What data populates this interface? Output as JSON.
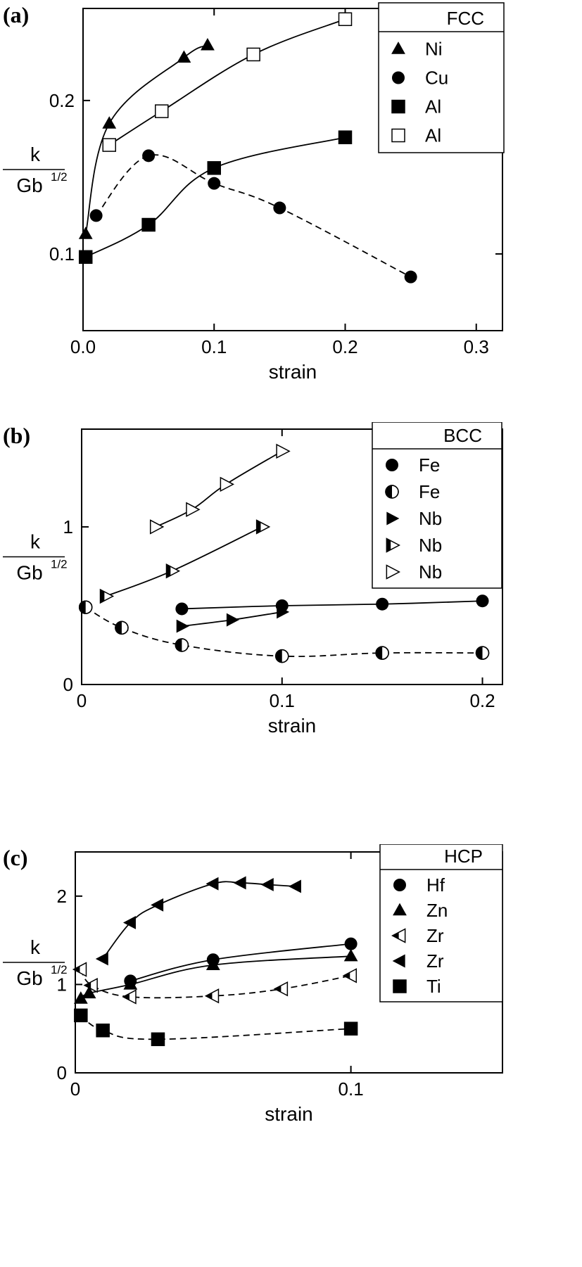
{
  "chart_data": [
    {
      "type": "scatter",
      "panel_label": "(a)",
      "xlabel": "strain",
      "ylabel_top": "k",
      "ylabel_bottom": "Gb",
      "ylabel_sup": "1/2",
      "xlim": [
        0,
        0.32
      ],
      "ylim": [
        0.05,
        0.26
      ],
      "xticks": [
        0.0,
        0.1,
        0.2,
        0.3
      ],
      "xtick_labels": [
        "0.0",
        "0.1",
        "0.2",
        "0.3"
      ],
      "yticks": [
        0.1,
        0.2
      ],
      "ytick_labels": [
        "0.1",
        "0.2"
      ],
      "legend_title": "FCC",
      "legend_position": "top-right",
      "series": [
        {
          "name": "Ni",
          "marker": "triangle-up-filled",
          "line": "solid",
          "x": [
            0.002,
            0.02,
            0.077,
            0.095
          ],
          "y": [
            0.113,
            0.185,
            0.228,
            0.236
          ]
        },
        {
          "name": "Cu",
          "marker": "circle-filled",
          "line": "dashed",
          "x": [
            0.01,
            0.05,
            0.1,
            0.15,
            0.25
          ],
          "y": [
            0.125,
            0.164,
            0.146,
            0.13,
            0.085
          ]
        },
        {
          "name": "Al",
          "marker": "square-filled",
          "line": "solid",
          "x": [
            0.002,
            0.05,
            0.1,
            0.2
          ],
          "y": [
            0.098,
            0.119,
            0.156,
            0.176
          ]
        },
        {
          "name": "Al",
          "marker": "square-open",
          "line": "solid",
          "x": [
            0.02,
            0.06,
            0.13,
            0.2
          ],
          "y": [
            0.171,
            0.193,
            0.23,
            0.253
          ]
        }
      ]
    },
    {
      "type": "scatter",
      "panel_label": "(b)",
      "xlabel": "strain",
      "ylabel_top": "k",
      "ylabel_bottom": "Gb",
      "ylabel_sup": "1/2",
      "xlim": [
        0,
        0.21
      ],
      "ylim": [
        0,
        1.62
      ],
      "xticks": [
        0,
        0.1,
        0.2
      ],
      "xtick_labels": [
        "0",
        "0.1",
        "0.2"
      ],
      "yticks": [
        0,
        1
      ],
      "ytick_labels": [
        "0",
        "1"
      ],
      "legend_title": "BCC",
      "legend_position": "top-right",
      "series": [
        {
          "name": "Fe",
          "marker": "circle-filled",
          "line": "solid",
          "x": [
            0.05,
            0.1,
            0.15,
            0.2
          ],
          "y": [
            0.48,
            0.5,
            0.51,
            0.53
          ]
        },
        {
          "name": "Fe",
          "marker": "circle-half",
          "line": "dashed",
          "x": [
            0.002,
            0.02,
            0.05,
            0.1,
            0.15,
            0.2
          ],
          "y": [
            0.49,
            0.36,
            0.25,
            0.18,
            0.2,
            0.2
          ]
        },
        {
          "name": "Nb",
          "marker": "triangle-right-filled",
          "line": "solid",
          "x": [
            0.05,
            0.075,
            0.1
          ],
          "y": [
            0.37,
            0.41,
            0.46
          ]
        },
        {
          "name": "Nb",
          "marker": "triangle-right-half",
          "line": "solid",
          "x": [
            0.012,
            0.045,
            0.09
          ],
          "y": [
            0.56,
            0.72,
            1.0
          ]
        },
        {
          "name": "Nb",
          "marker": "triangle-right-open",
          "line": "solid",
          "x": [
            0.037,
            0.055,
            0.072,
            0.1
          ],
          "y": [
            1.0,
            1.11,
            1.27,
            1.48
          ]
        }
      ]
    },
    {
      "type": "scatter",
      "panel_label": "(c)",
      "xlabel": "strain",
      "ylabel_top": "k",
      "ylabel_bottom": "Gb",
      "ylabel_sup": "1/2",
      "xlim": [
        0,
        0.155
      ],
      "ylim": [
        0,
        2.5
      ],
      "xticks": [
        0,
        0.1
      ],
      "xtick_labels": [
        "0",
        "0.1"
      ],
      "yticks": [
        0,
        1,
        2
      ],
      "ytick_labels": [
        "0",
        "1",
        "2"
      ],
      "legend_title": "HCP",
      "legend_position": "top-right",
      "series": [
        {
          "name": "Hf",
          "marker": "circle-filled",
          "line": "solid",
          "x": [
            0.02,
            0.05,
            0.1
          ],
          "y": [
            1.04,
            1.28,
            1.46
          ]
        },
        {
          "name": "Zn",
          "marker": "triangle-up-filled",
          "line": "solid",
          "x": [
            0.002,
            0.005,
            0.02,
            0.05,
            0.1
          ],
          "y": [
            0.84,
            0.9,
            1.0,
            1.22,
            1.32
          ]
        },
        {
          "name": "Zr",
          "marker": "triangle-left-half",
          "line": "dashed",
          "x": [
            0.002,
            0.006,
            0.02,
            0.05,
            0.075,
            0.1
          ],
          "y": [
            1.17,
            0.99,
            0.86,
            0.87,
            0.95,
            1.1
          ]
        },
        {
          "name": "Zr",
          "marker": "triangle-left-filled",
          "line": "solid",
          "x": [
            0.01,
            0.02,
            0.03,
            0.05,
            0.06,
            0.07,
            0.08
          ],
          "y": [
            1.29,
            1.7,
            1.9,
            2.14,
            2.15,
            2.13,
            2.11
          ]
        },
        {
          "name": "Ti",
          "marker": "square-filled",
          "line": "dashed",
          "x": [
            0.002,
            0.01,
            0.03,
            0.1
          ],
          "y": [
            0.65,
            0.48,
            0.38,
            0.5
          ]
        }
      ]
    }
  ]
}
